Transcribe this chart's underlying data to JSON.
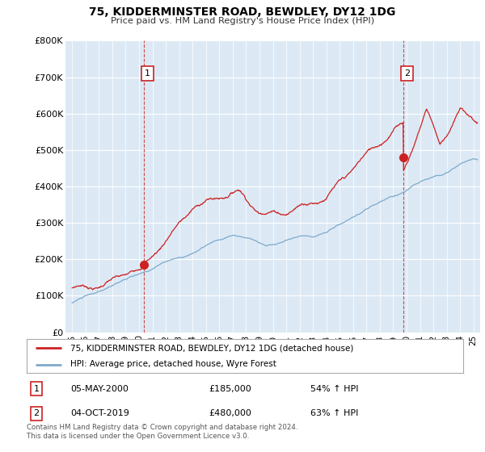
{
  "title": "75, KIDDERMINSTER ROAD, BEWDLEY, DY12 1DG",
  "subtitle": "Price paid vs. HM Land Registry's House Price Index (HPI)",
  "ylabel_ticks": [
    "£0",
    "£100K",
    "£200K",
    "£300K",
    "£400K",
    "£500K",
    "£600K",
    "£700K",
    "£800K"
  ],
  "ylim": [
    0,
    800000
  ],
  "xlim_start": 1994.5,
  "xlim_end": 2025.5,
  "transaction1_year": 2000.35,
  "transaction1_value": 185000,
  "transaction1_label": "1",
  "transaction2_year": 2019.75,
  "transaction2_value": 480000,
  "transaction2_label": "2",
  "hpi_color": "#7eaacc",
  "price_color": "#cc2222",
  "dashed_line_color": "#cc2222",
  "plot_bg_color": "#dce9f5",
  "grid_color": "#ffffff",
  "legend_label_red": "75, KIDDERMINSTER ROAD, BEWDLEY, DY12 1DG (detached house)",
  "legend_label_blue": "HPI: Average price, detached house, Wyre Forest",
  "table_row1_num": "1",
  "table_row1_date": "05-MAY-2000",
  "table_row1_price": "£185,000",
  "table_row1_hpi": "54% ↑ HPI",
  "table_row2_num": "2",
  "table_row2_date": "04-OCT-2019",
  "table_row2_price": "£480,000",
  "table_row2_hpi": "63% ↑ HPI",
  "footer": "Contains HM Land Registry data © Crown copyright and database right 2024.\nThis data is licensed under the Open Government Licence v3.0.",
  "background_color": "#ffffff"
}
